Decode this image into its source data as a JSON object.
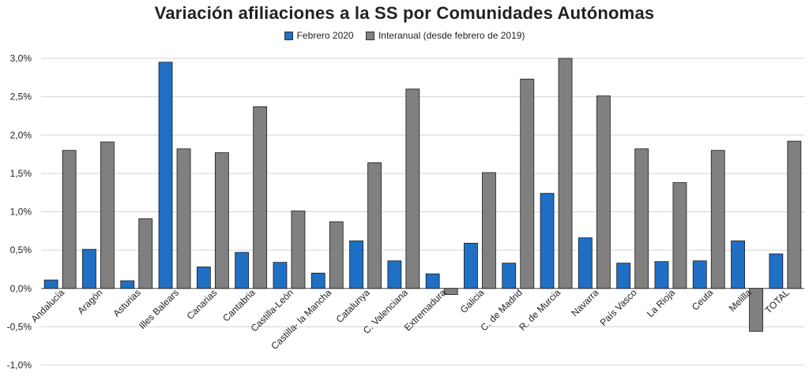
{
  "chart_data": {
    "type": "bar",
    "title": "Variación afiliaciones a la SS por Comunidades Autónomas",
    "categories": [
      "Andalucía",
      "Aragón",
      "Asturias",
      "Illes Balears",
      "Canarias",
      "Cantabria",
      "Castilla-León",
      "Castilla- la Mancha",
      "Catalunya",
      "C. Valenciana",
      "Extremadura",
      "Galicia",
      "C. de Madrid",
      "R. de Murcia",
      "Navarra",
      "País Vasco",
      "La Rioja",
      "Ceuta",
      "Melilla",
      "TOTAL"
    ],
    "series": [
      {
        "name": "Febrero 2020",
        "color": "#1f6fc5",
        "values": [
          0.11,
          0.51,
          0.1,
          2.95,
          0.28,
          0.47,
          0.34,
          0.2,
          0.62,
          0.36,
          0.19,
          0.59,
          0.33,
          1.24,
          0.66,
          0.33,
          0.35,
          0.36,
          0.62,
          0.45
        ]
      },
      {
        "name": "Interanual (desde febrero de 2019)",
        "color": "#808080",
        "values": [
          1.8,
          1.91,
          0.91,
          1.82,
          1.77,
          2.37,
          1.01,
          0.87,
          1.64,
          2.6,
          -0.08,
          1.51,
          2.73,
          3.0,
          2.51,
          1.82,
          1.38,
          1.8,
          -0.56,
          1.92
        ]
      }
    ],
    "yticks": [
      "3,0%",
      "2,5%",
      "2,0%",
      "1,5%",
      "1,0%",
      "0,5%",
      "0,0%",
      "-0,5%",
      "-1,0%"
    ],
    "ylim": [
      -1.0,
      3.0
    ],
    "legend_position": "top",
    "grid": true
  }
}
